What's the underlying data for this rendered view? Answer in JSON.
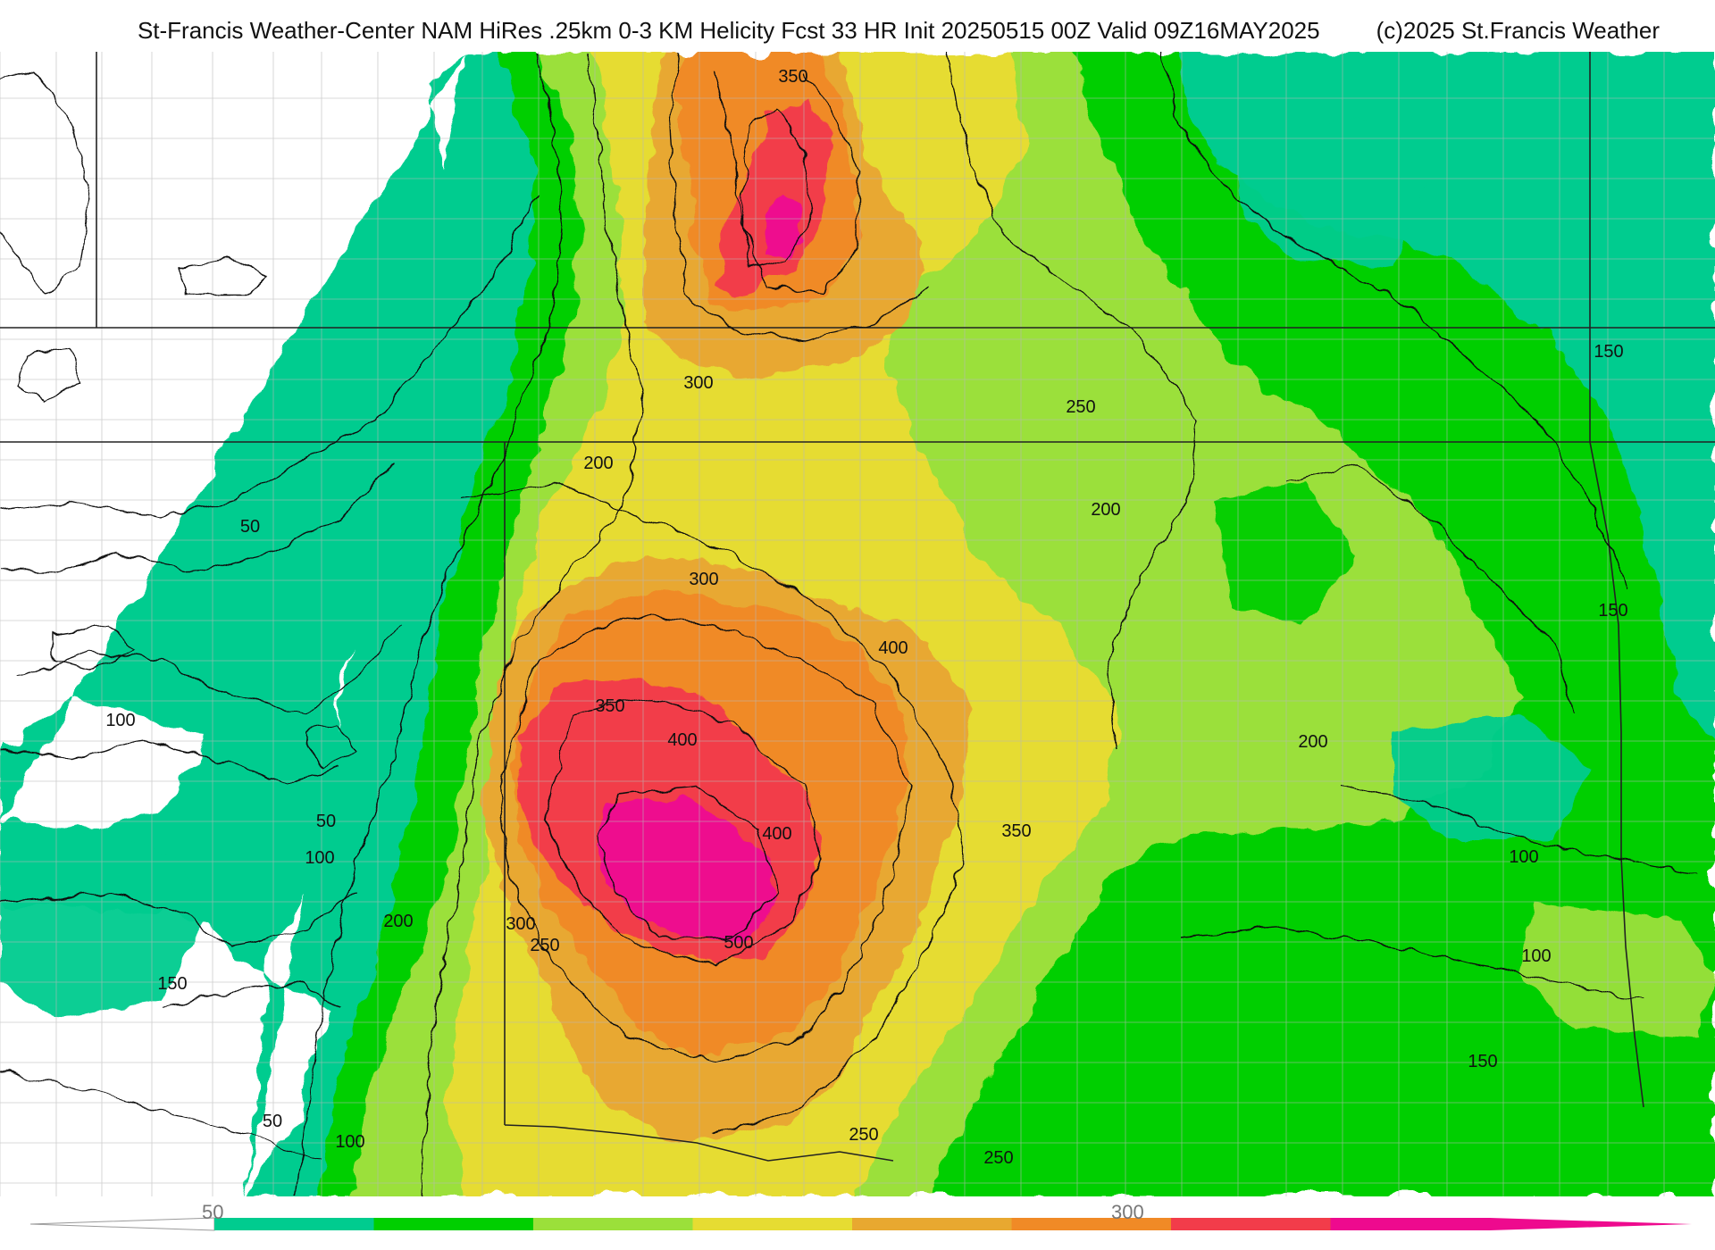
{
  "header": {
    "title": "St-Francis Weather-Center NAM HiRes .25km 0-3 KM Helicity Fcst 33 HR Init 20250515 00Z  Valid 09Z16MAY2025",
    "copyright": "(c)2025 St.Francis Weather"
  },
  "map": {
    "field": "0-3 KM Helicity",
    "colors": {
      "50": "#00cc8f",
      "100": "#00cf00",
      "150": "#9be03a",
      "200": "#e6dc32",
      "250": "#e8a830",
      "300": "#f08a26",
      "350": "#f23c4a",
      "400": "#ee0a8e"
    },
    "contour_labels": [
      {
        "text": "350"
      },
      {
        "text": "300"
      },
      {
        "text": "250"
      },
      {
        "text": "200"
      },
      {
        "text": "200"
      },
      {
        "text": "150"
      },
      {
        "text": "50"
      },
      {
        "text": "300"
      },
      {
        "text": "400"
      },
      {
        "text": "150"
      },
      {
        "text": "350"
      },
      {
        "text": "400"
      },
      {
        "text": "100"
      },
      {
        "text": "200"
      },
      {
        "text": "400"
      },
      {
        "text": "50"
      },
      {
        "text": "350"
      },
      {
        "text": "100"
      },
      {
        "text": "200"
      },
      {
        "text": "300"
      },
      {
        "text": "500"
      },
      {
        "text": "250"
      },
      {
        "text": "100"
      },
      {
        "text": "150"
      },
      {
        "text": "100"
      },
      {
        "text": "150"
      },
      {
        "text": "50"
      },
      {
        "text": "100"
      },
      {
        "text": "250"
      },
      {
        "text": "250"
      }
    ]
  },
  "colorbar": {
    "tick_labels": [
      "50",
      "300"
    ],
    "colors": [
      "#00cc8f",
      "#00cf00",
      "#9be03a",
      "#e6dc32",
      "#e8a830",
      "#f08a26",
      "#f23c4a",
      "#ee0a8e"
    ]
  }
}
